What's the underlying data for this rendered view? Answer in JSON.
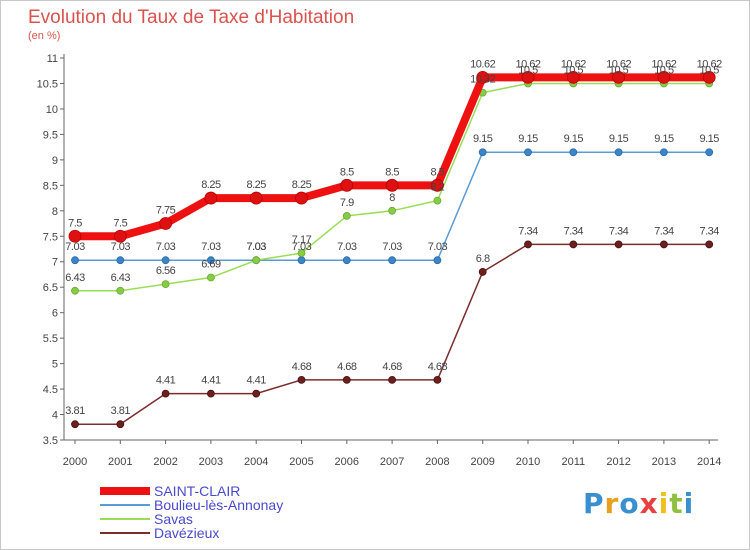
{
  "header": {
    "title": "Evolution du Taux de Taxe d'Habitation",
    "subtitle": "(en %)"
  },
  "chart_data": {
    "type": "line",
    "title": "Evolution du Taux de Taxe d'Habitation",
    "subtitle": "(en %)",
    "xlabel": "",
    "ylabel": "",
    "x": [
      "2000",
      "2001",
      "2002",
      "2003",
      "2004",
      "2005",
      "2006",
      "2007",
      "2008",
      "2009",
      "2010",
      "2011",
      "2012",
      "2013",
      "2014"
    ],
    "ylim": [
      3.5,
      11
    ],
    "yticks": [
      "3.5",
      "4",
      "4.5",
      "5",
      "5.5",
      "6",
      "6.5",
      "7",
      "7.5",
      "8",
      "8.5",
      "9",
      "9.5",
      "10",
      "10.5",
      "11"
    ],
    "grid": false,
    "legend_placement": "bottom-left",
    "series": [
      {
        "name": "SAINT-CLAIR",
        "color": "#ee1111",
        "values": [
          7.5,
          7.5,
          7.75,
          8.25,
          8.25,
          8.25,
          8.5,
          8.5,
          8.5,
          10.62,
          10.62,
          10.62,
          10.62,
          10.62,
          10.62
        ],
        "labels": [
          "7.5",
          "7.5",
          "7.75",
          "8.25",
          "8.25",
          "8.25",
          "8.5",
          "8.5",
          "8.5",
          "10.62",
          "10.62",
          "10.62",
          "10.62",
          "10.62",
          "10.62"
        ]
      },
      {
        "name": "Boulieu-lès-Annonay",
        "color": "#5b9bd5",
        "values": [
          7.03,
          7.03,
          7.03,
          7.03,
          7.03,
          7.03,
          7.03,
          7.03,
          7.03,
          9.15,
          9.15,
          9.15,
          9.15,
          9.15,
          9.15
        ],
        "labels": [
          "7.03",
          "7.03",
          "7.03",
          "7.03",
          "7.03",
          "7.03",
          "7.03",
          "7.03",
          "7.03",
          "9.15",
          "9.15",
          "9.15",
          "9.15",
          "9.15",
          "9.15"
        ]
      },
      {
        "name": "Savas",
        "color": "#99dd55",
        "values": [
          6.43,
          6.43,
          6.56,
          6.69,
          7.03,
          7.17,
          7.9,
          8,
          8.2,
          10.32,
          10.5,
          10.5,
          10.5,
          10.5,
          10.5
        ],
        "labels": [
          "6.43",
          "6.43",
          "6.56",
          "6.69",
          "7.03",
          "7.17",
          "7.9",
          "8",
          "8.2",
          "10.32",
          "10.5",
          "10.5",
          "10.5",
          "10.5",
          "10.5"
        ]
      },
      {
        "name": "Davézieux",
        "color": "#7b2d2d",
        "values": [
          3.81,
          3.81,
          4.41,
          4.41,
          4.41,
          4.68,
          4.68,
          4.68,
          4.68,
          6.8,
          7.34,
          7.34,
          7.34,
          7.34,
          7.34
        ],
        "labels": [
          "3.81",
          "3.81",
          "4.41",
          "4.41",
          "4.41",
          "4.68",
          "4.68",
          "4.68",
          "4.68",
          "6.8",
          "7.34",
          "7.34",
          "7.34",
          "7.34",
          "7.34"
        ]
      }
    ]
  },
  "logo": {
    "letters": [
      "P",
      "r",
      "o",
      "x",
      "i",
      "t",
      "i"
    ],
    "colors": [
      "#3a8fd0",
      "#e8a020",
      "#3a8fd0",
      "#e84040",
      "#f0c020",
      "#8fc040",
      "#3a8fd0"
    ]
  }
}
